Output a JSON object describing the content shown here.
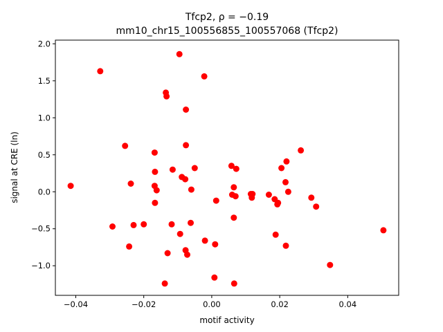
{
  "chart_data": {
    "type": "scatter",
    "title_line1": "Tfcp2, ρ = −0.19",
    "title_line2": "mm10_chr15_100556855_100557068 (Tfcp2)",
    "xlabel": "motif activity",
    "ylabel": "signal at CRE (ln)",
    "xlim": [
      -0.046,
      0.055
    ],
    "ylim": [
      -1.4,
      2.05
    ],
    "xticks": [
      -0.04,
      -0.02,
      0.0,
      0.02,
      0.04
    ],
    "xtick_labels": [
      "−0.04",
      "−0.02",
      "0.00",
      "0.02",
      "0.04"
    ],
    "yticks": [
      -1.0,
      -0.5,
      0.0,
      0.5,
      1.0,
      1.5,
      2.0
    ],
    "ytick_labels": [
      "−1.0",
      "−0.5",
      "0.0",
      "0.5",
      "1.0",
      "1.5",
      "2.0"
    ],
    "grid": false,
    "marker_color": "#ff0000",
    "points": [
      {
        "x": -0.0415,
        "y": 0.08
      },
      {
        "x": -0.0328,
        "y": 1.63
      },
      {
        "x": -0.0292,
        "y": -0.47
      },
      {
        "x": -0.0255,
        "y": 0.62
      },
      {
        "x": -0.0243,
        "y": -0.74
      },
      {
        "x": -0.0238,
        "y": 0.11
      },
      {
        "x": -0.023,
        "y": -0.45
      },
      {
        "x": -0.02,
        "y": -0.44
      },
      {
        "x": -0.0168,
        "y": 0.53
      },
      {
        "x": -0.0168,
        "y": 0.08
      },
      {
        "x": -0.0167,
        "y": 0.27
      },
      {
        "x": -0.0167,
        "y": -0.15
      },
      {
        "x": -0.0162,
        "y": 0.02
      },
      {
        "x": -0.0138,
        "y": -1.24
      },
      {
        "x": -0.0135,
        "y": 1.34
      },
      {
        "x": -0.0133,
        "y": 1.29
      },
      {
        "x": -0.013,
        "y": -0.83
      },
      {
        "x": -0.0118,
        "y": -0.44
      },
      {
        "x": -0.0115,
        "y": 0.3
      },
      {
        "x": -0.0095,
        "y": 1.86
      },
      {
        "x": -0.0093,
        "y": -0.57
      },
      {
        "x": -0.0088,
        "y": 0.2
      },
      {
        "x": -0.0078,
        "y": 0.17
      },
      {
        "x": -0.0077,
        "y": -0.79
      },
      {
        "x": -0.0076,
        "y": 1.11
      },
      {
        "x": -0.0076,
        "y": 0.63
      },
      {
        "x": -0.0072,
        "y": -0.85
      },
      {
        "x": -0.0062,
        "y": -0.42
      },
      {
        "x": -0.006,
        "y": 0.03
      },
      {
        "x": -0.005,
        "y": 0.32
      },
      {
        "x": -0.0022,
        "y": 1.56
      },
      {
        "x": -0.002,
        "y": -0.66
      },
      {
        "x": 0.0008,
        "y": -1.16
      },
      {
        "x": 0.001,
        "y": -0.71
      },
      {
        "x": 0.0013,
        "y": -0.12
      },
      {
        "x": 0.0058,
        "y": 0.35
      },
      {
        "x": 0.006,
        "y": -0.04
      },
      {
        "x": 0.0065,
        "y": 0.06
      },
      {
        "x": 0.0065,
        "y": -0.35
      },
      {
        "x": 0.0066,
        "y": -1.24
      },
      {
        "x": 0.007,
        "y": -0.06
      },
      {
        "x": 0.0072,
        "y": 0.31
      },
      {
        "x": 0.0115,
        "y": -0.03
      },
      {
        "x": 0.0118,
        "y": -0.08
      },
      {
        "x": 0.012,
        "y": -0.03
      },
      {
        "x": 0.0168,
        "y": -0.04
      },
      {
        "x": 0.0185,
        "y": -0.1
      },
      {
        "x": 0.0188,
        "y": -0.58
      },
      {
        "x": 0.0193,
        "y": -0.17
      },
      {
        "x": 0.0195,
        "y": -0.15
      },
      {
        "x": 0.0205,
        "y": 0.32
      },
      {
        "x": 0.0217,
        "y": 0.13
      },
      {
        "x": 0.0218,
        "y": -0.73
      },
      {
        "x": 0.022,
        "y": 0.41
      },
      {
        "x": 0.0225,
        "y": 0.0
      },
      {
        "x": 0.0262,
        "y": 0.56
      },
      {
        "x": 0.0293,
        "y": -0.08
      },
      {
        "x": 0.0307,
        "y": -0.2
      },
      {
        "x": 0.0348,
        "y": -0.99
      },
      {
        "x": 0.0505,
        "y": -0.52
      }
    ]
  }
}
